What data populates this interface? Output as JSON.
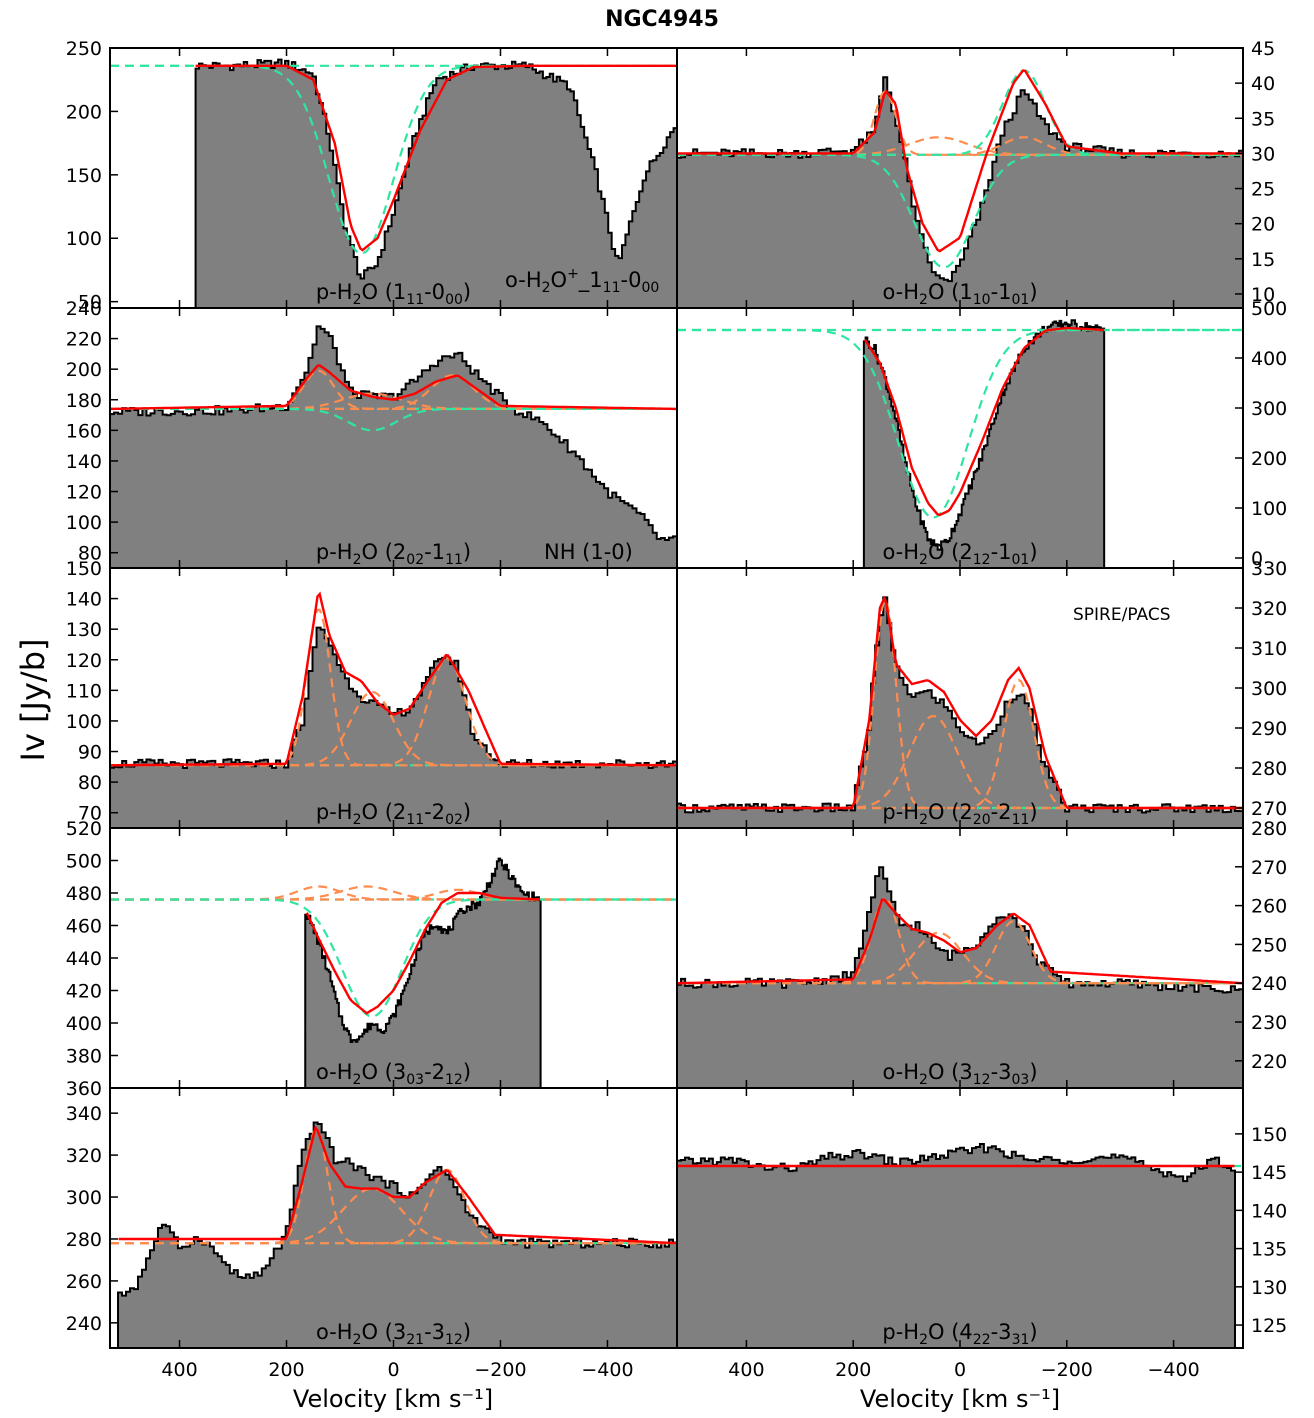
{
  "figure": {
    "title": "NGC4945",
    "ylabel": "Iv [Jy/b]",
    "xlabel": "Velocity [km s⁻¹]",
    "x_ticks": [
      400,
      200,
      0,
      -200,
      -400
    ],
    "instrument_label": "SPIRE/PACS"
  },
  "colors": {
    "spectrum_fill": "#808080",
    "spectrum_line": "#000000",
    "total_fit": "#ff0000",
    "component_fit": "#ff8c4f",
    "absorption_fit": "#2ee6a0"
  },
  "chart_data": [
    {
      "type": "area",
      "panel": "p-H2O (1_11-0_00)",
      "label": {
        "species": "p-H",
        "sub1": "2",
        "mid": "O (1",
        "sub2": "11",
        "dash": "-0",
        "sub3": "00",
        "end": ")"
      },
      "extra_label": {
        "species": "o-H",
        "sub1": "2",
        "mid": "O",
        "sup": "+",
        "mid2": "_1",
        "sub2": "11",
        "dash": "-0",
        "sub3": "00"
      },
      "xlim": [
        530,
        -530
      ],
      "ylim": [
        45,
        250
      ],
      "yticks": [
        50,
        100,
        150,
        200,
        250
      ],
      "axis": "left",
      "continuum": 236,
      "data_xrange": [
        370,
        -530
      ],
      "emission": [],
      "absorption": [
        {
          "v": 60,
          "amp": -148,
          "sigma": 60
        }
      ],
      "extra_absorption": [
        {
          "v": -420,
          "amp": -160,
          "sigma": 35
        }
      ],
      "x": [
        370,
        300,
        200,
        150,
        120,
        90,
        60,
        30,
        0,
        -40,
        -80,
        -150,
        -250,
        -330,
        -380,
        -420,
        -470,
        -530
      ],
      "y": [
        236,
        236,
        238,
        230,
        180,
        110,
        68,
        80,
        120,
        180,
        225,
        236,
        236,
        220,
        150,
        78,
        150,
        190
      ],
      "x_fit": [
        370,
        200,
        150,
        110,
        80,
        60,
        30,
        0,
        -50,
        -100,
        -150,
        -250,
        -530
      ],
      "y_fit": [
        236,
        236,
        225,
        175,
        110,
        90,
        100,
        130,
        185,
        225,
        235,
        236,
        236
      ]
    },
    {
      "type": "area",
      "panel": "o-H2O (1_10-1_01)",
      "label": {
        "species": "o-H",
        "sub1": "2",
        "mid": "O (1",
        "sub2": "10",
        "dash": "-1",
        "sub3": "01",
        "end": ")"
      },
      "xlim": [
        530,
        -530
      ],
      "ylim": [
        8,
        45
      ],
      "yticks": [
        10,
        15,
        20,
        25,
        30,
        35,
        40,
        45
      ],
      "axis": "right",
      "continuum": 29.8,
      "data_xrange": [
        530,
        -530
      ],
      "emission": [
        {
          "v": 140,
          "amp": 9,
          "sigma": 20
        },
        {
          "v": 40,
          "amp": 2.5,
          "sigma": 55
        },
        {
          "v": -120,
          "amp": 2.5,
          "sigma": 40
        }
      ],
      "absorption": [
        {
          "v": 30,
          "amp": -16,
          "sigma": 55
        },
        {
          "v": -120,
          "amp": 12,
          "sigma": 40
        }
      ],
      "x": [
        530,
        300,
        200,
        160,
        140,
        120,
        100,
        80,
        60,
        40,
        20,
        0,
        -40,
        -80,
        -120,
        -160,
        -200,
        -300,
        -530
      ],
      "y": [
        30,
        30,
        30.5,
        33,
        41,
        35,
        28,
        20,
        15,
        12,
        12,
        14,
        22,
        33,
        39,
        34,
        31,
        30,
        30
      ],
      "x_fit": [
        530,
        200,
        160,
        140,
        120,
        100,
        70,
        40,
        0,
        -50,
        -100,
        -120,
        -160,
        -200,
        -300,
        -530
      ],
      "y_fit": [
        30,
        30,
        33,
        39,
        37,
        28,
        20,
        16,
        18,
        30,
        40,
        42,
        37,
        31,
        30,
        30
      ]
    },
    {
      "type": "area",
      "panel": "p-H2O (2_02-1_11)",
      "label": {
        "species": "p-H",
        "sub1": "2",
        "mid": "O (2",
        "sub2": "02",
        "dash": "-1",
        "sub3": "11",
        "end": ")"
      },
      "extra_label_text": "NH (1-0)",
      "xlim": [
        530,
        -530
      ],
      "ylim": [
        70,
        240
      ],
      "yticks": [
        80,
        100,
        120,
        140,
        160,
        180,
        200,
        220,
        240
      ],
      "axis": "left",
      "continuum": 174,
      "data_xrange": [
        530,
        -530
      ],
      "emission": [
        {
          "v": 140,
          "amp": 25,
          "sigma": 28
        },
        {
          "v": 40,
          "amp": 10,
          "sigma": 55
        },
        {
          "v": -110,
          "amp": 22,
          "sigma": 40
        }
      ],
      "absorption": [
        {
          "v": 40,
          "amp": -14,
          "sigma": 45
        }
      ],
      "x": [
        530,
        300,
        200,
        160,
        140,
        120,
        80,
        40,
        0,
        -40,
        -80,
        -120,
        -160,
        -220,
        -280,
        -340,
        -400,
        -460,
        -500,
        -530
      ],
      "y": [
        172,
        173,
        176,
        200,
        228,
        222,
        185,
        182,
        182,
        192,
        205,
        210,
        195,
        175,
        165,
        145,
        120,
        105,
        88,
        88
      ],
      "x_fit": [
        530,
        200,
        160,
        140,
        120,
        80,
        40,
        0,
        -40,
        -80,
        -120,
        -160,
        -200,
        -530
      ],
      "y_fit": [
        174,
        176,
        195,
        203,
        198,
        186,
        182,
        180,
        184,
        192,
        196,
        186,
        176,
        174
      ]
    },
    {
      "type": "area",
      "panel": "o-H2O (2_12-1_01)",
      "label": {
        "species": "o-H",
        "sub1": "2",
        "mid": "O (2",
        "sub2": "12",
        "dash": "-1",
        "sub3": "01",
        "end": ")"
      },
      "xlim": [
        530,
        -530
      ],
      "ylim": [
        -20,
        500
      ],
      "yticks": [
        0,
        100,
        200,
        300,
        400,
        500
      ],
      "axis": "right",
      "continuum": 456,
      "data_xrange": [
        180,
        -270
      ],
      "emission": [],
      "absorption": [
        {
          "v": 50,
          "amp": -375,
          "sigma": 65
        }
      ],
      "x": [
        180,
        160,
        140,
        120,
        100,
        80,
        60,
        40,
        20,
        0,
        -40,
        -80,
        -120,
        -160,
        -200,
        -240,
        -270
      ],
      "y": [
        440,
        420,
        360,
        280,
        180,
        100,
        40,
        20,
        40,
        90,
        200,
        330,
        420,
        460,
        470,
        462,
        455
      ],
      "x_fit": [
        180,
        150,
        120,
        90,
        60,
        40,
        20,
        0,
        -40,
        -80,
        -120,
        -160,
        -200,
        -270
      ],
      "y_fit": [
        440,
        390,
        300,
        180,
        110,
        85,
        95,
        130,
        230,
        340,
        420,
        455,
        460,
        456
      ]
    },
    {
      "type": "area",
      "panel": "p-H2O (2_11-2_02)",
      "label": {
        "species": "p-H",
        "sub1": "2",
        "mid": "O (2",
        "sub2": "11",
        "dash": "-2",
        "sub3": "02",
        "end": ")"
      },
      "xlim": [
        530,
        -530
      ],
      "ylim": [
        65,
        150
      ],
      "yticks": [
        70,
        80,
        90,
        100,
        110,
        120,
        130,
        140,
        150
      ],
      "axis": "left",
      "continuum": 85.5,
      "data_xrange": [
        530,
        -530
      ],
      "emission": [
        {
          "v": 140,
          "amp": 51,
          "sigma": 22
        },
        {
          "v": 40,
          "amp": 24,
          "sigma": 40
        },
        {
          "v": -100,
          "amp": 35,
          "sigma": 35
        }
      ],
      "absorption": [],
      "x": [
        530,
        300,
        200,
        170,
        140,
        120,
        90,
        60,
        30,
        0,
        -30,
        -60,
        -90,
        -120,
        -150,
        -200,
        -300,
        -530
      ],
      "y": [
        86,
        86,
        86,
        100,
        131,
        126,
        114,
        108,
        105,
        102,
        104,
        112,
        122,
        118,
        95,
        86,
        86,
        86
      ],
      "x_fit": [
        530,
        200,
        170,
        140,
        120,
        90,
        60,
        30,
        0,
        -30,
        -60,
        -100,
        -140,
        -200,
        -530
      ],
      "y_fit": [
        85.5,
        86,
        108,
        143,
        128,
        116,
        113,
        106,
        102,
        104,
        112,
        122,
        110,
        86,
        85.5
      ]
    },
    {
      "type": "area",
      "panel": "p-H2O (2_20-2_11)",
      "label": {
        "species": "p-H",
        "sub1": "2",
        "mid": "O (2",
        "sub2": "20",
        "dash": "-2",
        "sub3": "11",
        "end": ")"
      },
      "xlim": [
        530,
        -530
      ],
      "ylim": [
        265,
        330
      ],
      "yticks": [
        270,
        280,
        290,
        300,
        310,
        320,
        330
      ],
      "axis": "right",
      "continuum": 270,
      "data_xrange": [
        530,
        -530
      ],
      "emission": [
        {
          "v": 140,
          "amp": 52,
          "sigma": 20
        },
        {
          "v": 50,
          "amp": 23,
          "sigma": 45
        },
        {
          "v": -110,
          "amp": 32,
          "sigma": 28
        }
      ],
      "absorption": [],
      "x": [
        530,
        200,
        170,
        150,
        140,
        120,
        90,
        60,
        30,
        0,
        -30,
        -60,
        -90,
        -110,
        -130,
        -160,
        -200,
        -530
      ],
      "y": [
        270,
        270,
        290,
        318,
        322,
        305,
        298,
        299,
        296,
        290,
        286,
        288,
        297,
        299,
        295,
        280,
        270,
        270
      ],
      "x_fit": [
        530,
        200,
        170,
        150,
        140,
        120,
        90,
        60,
        30,
        0,
        -30,
        -60,
        -90,
        -110,
        -130,
        -160,
        -200,
        -530
      ],
      "y_fit": [
        270,
        270,
        292,
        320,
        323,
        306,
        301,
        302,
        299,
        292,
        288,
        292,
        302,
        305,
        300,
        283,
        270,
        270
      ]
    },
    {
      "type": "area",
      "panel": "o-H2O (3_03-2_12)",
      "label": {
        "species": "o-H",
        "sub1": "2",
        "mid": "O (3",
        "sub2": "03",
        "dash": "-2",
        "sub3": "12",
        "end": ")"
      },
      "xlim": [
        530,
        -530
      ],
      "ylim": [
        360,
        520
      ],
      "yticks": [
        360,
        380,
        400,
        420,
        440,
        460,
        480,
        500,
        520
      ],
      "axis": "left",
      "continuum": 476,
      "data_xrange": [
        165,
        -275
      ],
      "emission": [
        {
          "v": 140,
          "amp": 8,
          "sigma": 40
        },
        {
          "v": 50,
          "amp": 8,
          "sigma": 50
        },
        {
          "v": -120,
          "amp": 6,
          "sigma": 40
        }
      ],
      "absorption": [
        {
          "v": 40,
          "amp": -72,
          "sigma": 55
        }
      ],
      "x": [
        165,
        140,
        120,
        100,
        80,
        60,
        40,
        20,
        0,
        -20,
        -40,
        -60,
        -80,
        -100,
        -130,
        -160,
        -200,
        -240,
        -275
      ],
      "y": [
        470,
        450,
        430,
        405,
        390,
        392,
        400,
        396,
        404,
        420,
        440,
        455,
        462,
        455,
        470,
        474,
        500,
        480,
        476
      ],
      "x_fit": [
        165,
        140,
        110,
        80,
        50,
        30,
        0,
        -30,
        -60,
        -90,
        -120,
        -160,
        -200,
        -275
      ],
      "y_fit": [
        470,
        452,
        432,
        414,
        406,
        410,
        420,
        438,
        458,
        474,
        480,
        480,
        477,
        476
      ]
    },
    {
      "type": "area",
      "panel": "o-H2O (3_12-3_03)",
      "label": {
        "species": "o-H",
        "sub1": "2",
        "mid": "O (3",
        "sub2": "12",
        "dash": "-3",
        "sub3": "03",
        "end": ")"
      },
      "xlim": [
        530,
        -530
      ],
      "ylim": [
        213,
        280
      ],
      "yticks": [
        220,
        230,
        240,
        250,
        260,
        270,
        280
      ],
      "axis": "right",
      "continuum": 240,
      "data_xrange": [
        530,
        -530
      ],
      "emission": [
        {
          "v": 140,
          "amp": 22,
          "sigma": 25
        },
        {
          "v": 40,
          "amp": 13,
          "sigma": 45
        },
        {
          "v": -100,
          "amp": 16,
          "sigma": 32
        }
      ],
      "absorption": [],
      "x": [
        530,
        300,
        200,
        170,
        150,
        130,
        110,
        80,
        50,
        20,
        0,
        -30,
        -60,
        -90,
        -120,
        -150,
        -200,
        -300,
        -530
      ],
      "y": [
        240,
        240,
        242,
        258,
        270,
        262,
        255,
        255,
        250,
        247,
        248,
        250,
        256,
        258,
        254,
        245,
        240,
        240,
        238
      ],
      "x_fit": [
        530,
        200,
        170,
        145,
        120,
        90,
        60,
        30,
        0,
        -30,
        -70,
        -100,
        -130,
        -170,
        -530
      ],
      "y_fit": [
        240,
        241,
        251,
        262,
        258,
        254,
        253,
        251,
        248,
        249,
        255,
        258,
        255,
        243,
        240
      ]
    },
    {
      "type": "area",
      "panel": "o-H2O (3_21-3_12)",
      "label": {
        "species": "o-H",
        "sub1": "2",
        "mid": "O (3",
        "sub2": "21",
        "dash": "-3",
        "sub3": "12",
        "end": ")"
      },
      "xlim": [
        530,
        -530
      ],
      "ylim": [
        228,
        352
      ],
      "yticks": [
        240,
        260,
        280,
        300,
        320,
        340
      ],
      "axis": "left",
      "continuum": 278,
      "data_xrange": [
        515,
        -530
      ],
      "emission": [
        {
          "v": 145,
          "amp": 54,
          "sigma": 22
        },
        {
          "v": 40,
          "amp": 26,
          "sigma": 55
        },
        {
          "v": -100,
          "amp": 35,
          "sigma": 33
        }
      ],
      "absorption": [],
      "x": [
        515,
        480,
        430,
        400,
        360,
        320,
        290,
        250,
        200,
        170,
        140,
        110,
        80,
        40,
        0,
        -40,
        -80,
        -110,
        -140,
        -180,
        -220,
        -300,
        -400,
        -530
      ],
      "y": [
        252,
        258,
        288,
        276,
        281,
        270,
        262,
        262,
        282,
        320,
        338,
        318,
        316,
        310,
        305,
        300,
        315,
        308,
        292,
        283,
        278,
        278,
        278,
        278
      ],
      "x_fit": [
        530,
        200,
        175,
        145,
        120,
        90,
        60,
        30,
        0,
        -30,
        -60,
        -100,
        -140,
        -190,
        -530
      ],
      "y_fit": [
        278,
        280,
        303,
        334,
        316,
        305,
        304,
        304,
        300,
        300,
        307,
        313,
        300,
        282,
        278
      ]
    },
    {
      "type": "area",
      "panel": "p-H2O (4_22-3_31)",
      "label": {
        "species": "p-H",
        "sub1": "2",
        "mid": "O (4",
        "sub2": "22",
        "dash": "-3",
        "sub3": "31",
        "end": ")"
      },
      "xlim": [
        530,
        -530
      ],
      "ylim": [
        122,
        156
      ],
      "yticks": [
        125,
        130,
        135,
        140,
        145,
        150
      ],
      "axis": "right",
      "continuum": 145.8,
      "data_xrange": [
        530,
        -515
      ],
      "emission": [],
      "absorption": [],
      "x": [
        530,
        480,
        420,
        360,
        300,
        240,
        180,
        120,
        60,
        0,
        -60,
        -120,
        -180,
        -240,
        -300,
        -360,
        -420,
        -480,
        -515
      ],
      "y": [
        146.2,
        146.5,
        146.5,
        145.5,
        145.6,
        147,
        147.4,
        146.2,
        146.8,
        147.6,
        148.3,
        146.6,
        146.6,
        146.8,
        146.9,
        145.6,
        144.2,
        146.6,
        145.5
      ],
      "x_fit": [
        530,
        -530
      ],
      "y_fit": [
        145.8,
        145.8
      ]
    }
  ]
}
